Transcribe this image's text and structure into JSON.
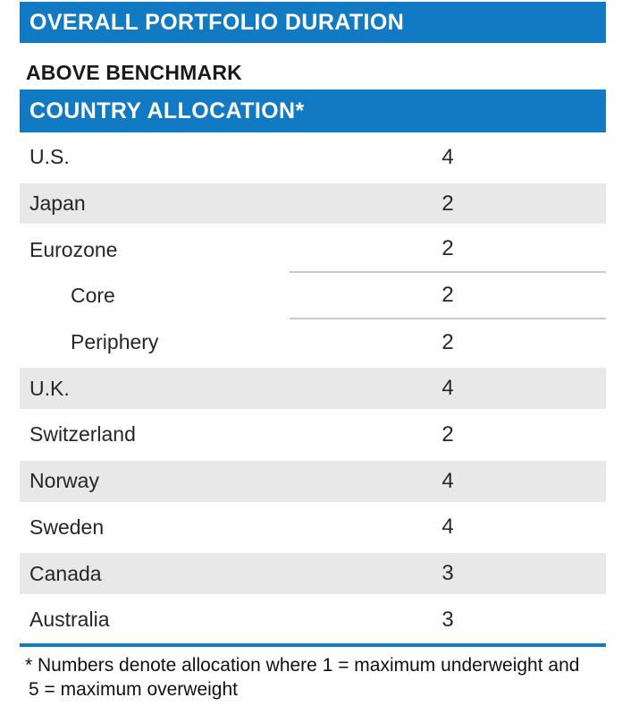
{
  "accent_color": "#127AC2",
  "shaded_row_color": "#E8E8E8",
  "section1": {
    "title": "OVERALL PORTFOLIO DURATION"
  },
  "status_line": "ABOVE BENCHMARK",
  "section2": {
    "title": "COUNTRY ALLOCATION*"
  },
  "chart_data": {
    "type": "table",
    "title": "COUNTRY ALLOCATION*",
    "scale_note": "1 = maximum underweight, 5 = maximum overweight",
    "rows": [
      {
        "label": "U.S.",
        "value": "4",
        "indent": false,
        "shaded": false,
        "divider_below": false
      },
      {
        "label": "Japan",
        "value": "2",
        "indent": false,
        "shaded": true,
        "divider_below": false
      },
      {
        "label": "Eurozone",
        "value": "2",
        "indent": false,
        "shaded": false,
        "divider_below": true
      },
      {
        "label": "Core",
        "value": "2",
        "indent": true,
        "shaded": false,
        "divider_below": true
      },
      {
        "label": "Periphery",
        "value": "2",
        "indent": true,
        "shaded": false,
        "divider_below": false
      },
      {
        "label": "U.K.",
        "value": "4",
        "indent": false,
        "shaded": true,
        "divider_below": false
      },
      {
        "label": "Switzerland",
        "value": "2",
        "indent": false,
        "shaded": false,
        "divider_below": false
      },
      {
        "label": "Norway",
        "value": "4",
        "indent": false,
        "shaded": true,
        "divider_below": false
      },
      {
        "label": "Sweden",
        "value": "4",
        "indent": false,
        "shaded": false,
        "divider_below": false
      },
      {
        "label": "Canada",
        "value": "3",
        "indent": false,
        "shaded": true,
        "divider_below": false
      },
      {
        "label": "Australia",
        "value": "3",
        "indent": false,
        "shaded": false,
        "divider_below": false
      }
    ]
  },
  "footnote": {
    "line1": "* Numbers denote allocation where 1 = maximum underweight and",
    "line2": "5 = maximum overweight"
  }
}
